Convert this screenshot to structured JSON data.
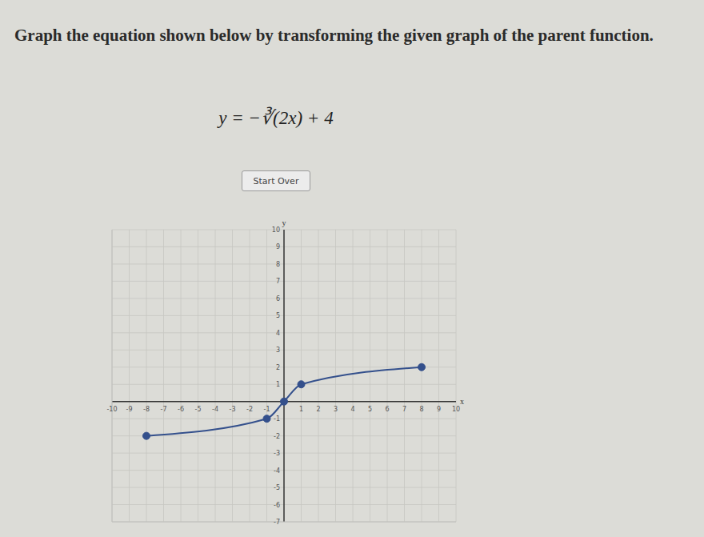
{
  "chart_data": {
    "type": "line",
    "title": "Graph the equation shown below by transforming the given graph of the parent function.",
    "subtitle": "y = −∛(2x) + 4",
    "annotations": [
      "Start Over"
    ],
    "xlabel": "x",
    "ylabel": "y",
    "x": [
      -8,
      -1,
      0,
      1,
      8
    ],
    "values": [
      -2,
      -1,
      0,
      1,
      2
    ],
    "color": "#34508c",
    "marker": "circle",
    "line_style": "solid",
    "grid": true,
    "xlim": [
      -10,
      10
    ],
    "xticks": [
      -10,
      -9,
      -8,
      -7,
      -6,
      -5,
      -4,
      -3,
      -2,
      -1,
      1,
      2,
      3,
      4,
      5,
      6,
      7,
      8,
      9,
      10
    ],
    "ylim": [
      -7,
      10
    ],
    "yticks": [
      -7,
      -6,
      -5,
      -4,
      -3,
      -2,
      -1,
      1,
      2,
      3,
      4,
      5,
      6,
      7,
      8,
      9,
      10
    ]
  }
}
